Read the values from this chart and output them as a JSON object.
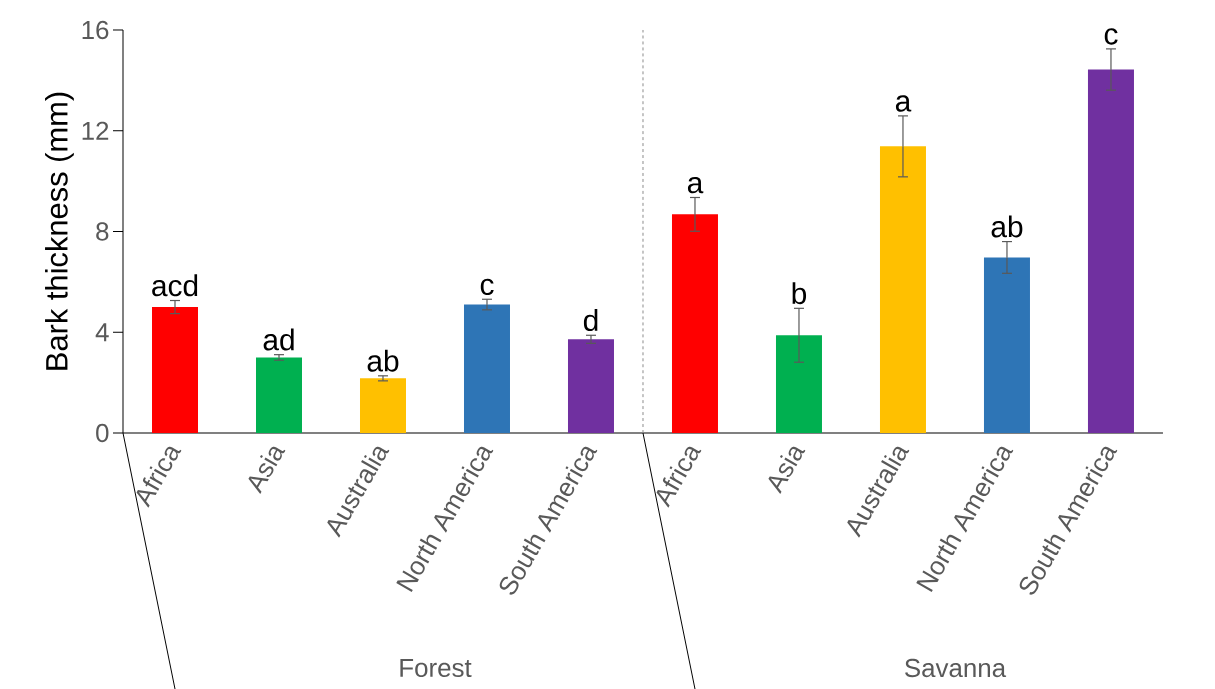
{
  "chart_data": {
    "type": "bar",
    "ylabel": "Bark thickness (mm)",
    "categories": [
      "Africa",
      "Asia",
      "Australia",
      "North America",
      "South America",
      "Africa",
      "Asia",
      "Australia",
      "North America",
      "South America"
    ],
    "values": [
      5.0,
      3.0,
      2.17,
      5.1,
      3.72,
      8.68,
      3.88,
      11.38,
      6.97,
      14.43
    ],
    "errors": [
      0.26,
      0.11,
      0.1,
      0.21,
      0.16,
      0.67,
      1.07,
      1.21,
      0.63,
      0.82
    ],
    "colors": [
      "#ff0000",
      "#00b050",
      "#ffc000",
      "#2e75b6",
      "#7030a0",
      "#ff0000",
      "#00b050",
      "#ffc000",
      "#2e75b6",
      "#7030a0"
    ],
    "value_labels": [
      "acd",
      "ad",
      "ab",
      "c",
      "d",
      "a",
      "b",
      "a",
      "ab",
      "c"
    ],
    "ylim": [
      0,
      16
    ],
    "yticks": [
      0,
      4,
      8,
      12,
      16
    ],
    "annotations": [
      "Forest",
      "Savanna"
    ]
  }
}
